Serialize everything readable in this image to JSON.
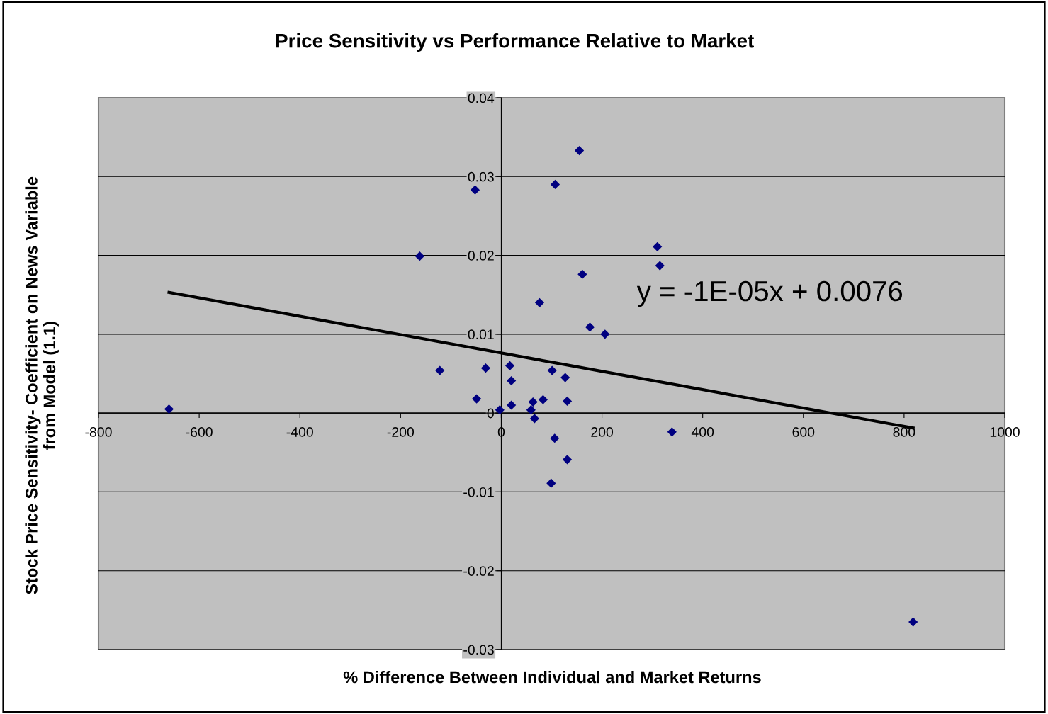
{
  "chart_data": {
    "type": "scatter",
    "title": "Price Sensitivity vs Performance Relative to Market",
    "xlabel": "% Difference Between Individual and Market Returns",
    "ylabel": "Stock Price Sensitivity- Coefficient on News Variable\nfrom Model (1.1)",
    "annotations": [
      "y = -1E-05x + 0.0076"
    ],
    "series": [
      {
        "color": "#000080",
        "marker": "diamond",
        "x": [
          -660,
          -162,
          -122,
          -52,
          -49,
          -31,
          -3,
          17,
          20,
          20,
          59,
          63,
          66,
          76,
          83,
          101,
          99,
          107,
          106,
          127,
          131,
          131,
          155,
          161,
          176,
          206,
          310,
          315,
          339,
          818
        ],
        "values": [
          0.0005,
          0.0199,
          0.0054,
          0.0283,
          0.0018,
          0.0057,
          0.0004,
          0.006,
          0.0041,
          0.001,
          0.0004,
          0.0014,
          -0.0007,
          0.014,
          0.0017,
          0.0054,
          -0.0089,
          0.029,
          -0.0032,
          0.0045,
          0.0015,
          -0.0059,
          0.0333,
          0.0176,
          0.0109,
          0.01,
          0.0211,
          0.0187,
          -0.0024,
          -0.0265
        ]
      },
      {
        "type": "line",
        "color": "#000000",
        "line_style": "solid",
        "x": [
          -660,
          818
        ],
        "values": [
          0.0153,
          -0.0019
        ]
      }
    ],
    "xlim": [
      -800,
      1000
    ],
    "xticks": [
      -800,
      -600,
      -400,
      -200,
      0,
      200,
      400,
      600,
      800,
      1000
    ],
    "ylim": [
      -0.03,
      0.04
    ],
    "yticks": [
      -0.03,
      -0.02,
      -0.01,
      0,
      0.01,
      0.02,
      0.03,
      0.04
    ],
    "grid": "y",
    "legend": false
  }
}
